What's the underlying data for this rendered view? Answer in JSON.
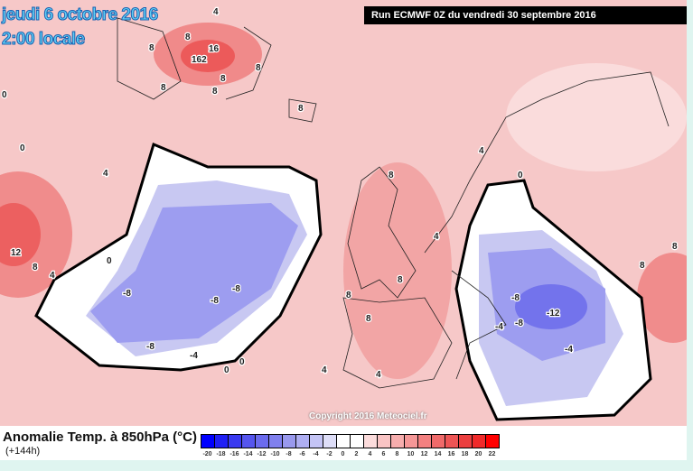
{
  "header": {
    "date": "jeudi 6 octobre 2016",
    "time": "2:00 locale",
    "run": "Run ECMWF 0Z du vendredi 30 septembre 2016"
  },
  "copyright": "Copyright 2016 Meteociel.fr",
  "legend": {
    "title": "Anomalie Temp. à 850hPa (°C)",
    "subtitle": "(+144h)",
    "ticks": [
      "-20",
      "-18",
      "-16",
      "-14",
      "-12",
      "-10",
      "-8",
      "-6",
      "-4",
      "-2",
      "0",
      "2",
      "4",
      "6",
      "8",
      "10",
      "12",
      "14",
      "16",
      "18",
      "20",
      "22"
    ],
    "colors": [
      "#0000ff",
      "#2020f5",
      "#3a3af0",
      "#5555ee",
      "#6b6bee",
      "#8080ee",
      "#9999ee",
      "#aeaef2",
      "#c4c4f5",
      "#dedef8",
      "#ffffff",
      "#ffffff",
      "#fcdcdc",
      "#f9c4c4",
      "#f7aeae",
      "#f59797",
      "#f38080",
      "#f06a6a",
      "#ee5555",
      "#ec3f3f",
      "#f02a2a",
      "#ff0000"
    ]
  },
  "contour_labels": [
    "4",
    "4",
    "8",
    "8",
    "16",
    "162",
    "8",
    "8",
    "8",
    "8",
    "0",
    "0",
    "4",
    "0",
    "12",
    "8",
    "4",
    "0",
    "-8",
    "-8",
    "-8",
    "-8",
    "-4",
    "0",
    "0",
    "8",
    "8",
    "8",
    "8",
    "4",
    "4",
    "0",
    "-8",
    "-8",
    "-12",
    "-4",
    "-4",
    "4",
    "8",
    "8",
    "8",
    "4"
  ]
}
